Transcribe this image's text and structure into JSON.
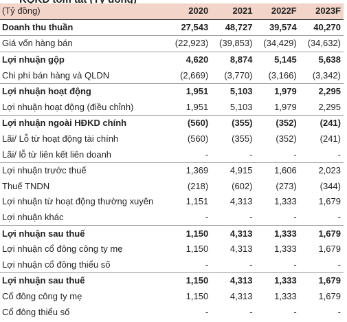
{
  "table": {
    "header": {
      "unit": "(Tỷ đồng)",
      "years": [
        "2020",
        "2021",
        "2022F",
        "2023F"
      ]
    },
    "rows": [
      {
        "label": "Doanh thu thuần",
        "values": [
          "27,543",
          "48,727",
          "39,574",
          "40,270"
        ],
        "bold": true,
        "sep": false
      },
      {
        "label": "Giá vốn hàng bán",
        "values": [
          "(22,923)",
          "(39,853)",
          "(34,429)",
          "(34,632)"
        ],
        "bold": false,
        "sep": true
      },
      {
        "label": "Lợi nhuận gộp",
        "values": [
          "4,620",
          "8,874",
          "5,145",
          "5,638"
        ],
        "bold": true,
        "sep": true
      },
      {
        "label": "Chi phí bán hàng và QLDN",
        "values": [
          "(2,669)",
          "(3,770)",
          "(3,166)",
          "(3,342)"
        ],
        "bold": false,
        "sep": false
      },
      {
        "label": "Lợi nhuận hoạt động",
        "values": [
          "1,951",
          "5,103",
          "1,979",
          "2,295"
        ],
        "bold": true,
        "sep": true
      },
      {
        "label": "Lợi nhuận hoạt động (điều chỉnh)",
        "values": [
          "1,951",
          "5,103",
          "1,979",
          "2,295"
        ],
        "bold": false,
        "sep": false
      },
      {
        "label": "Lợi nhuận ngoài HĐKD chính",
        "values": [
          "(560)",
          "(355)",
          "(352)",
          "(241)"
        ],
        "bold": true,
        "sep": true
      },
      {
        "label": "Lãi/ Lỗ từ hoạt động tài chính",
        "values": [
          "(560)",
          "(355)",
          "(352)",
          "(241)"
        ],
        "bold": false,
        "sep": false
      },
      {
        "label": "Lãi/ lỗ từ liên kết liên doanh",
        "values": [
          "-",
          "-",
          "-",
          "-"
        ],
        "bold": false,
        "sep": false
      },
      {
        "label": "Lợi nhuận trước thuế",
        "values": [
          "1,369",
          "4,915",
          "1,606",
          "2,023"
        ],
        "bold": false,
        "sep": true
      },
      {
        "label": "Thuế TNDN",
        "values": [
          "(218)",
          "(602)",
          "(273)",
          "(344)"
        ],
        "bold": false,
        "sep": false
      },
      {
        "label": "Lợi nhuận từ hoạt động thường xuyên",
        "values": [
          "1,151",
          "4,313",
          "1,333",
          "1,679"
        ],
        "bold": false,
        "sep": false
      },
      {
        "label": "Lợi nhuận khác",
        "values": [
          "-",
          "-",
          "-",
          "-"
        ],
        "bold": false,
        "sep": false
      },
      {
        "label": "Lợi nhuận sau thuế",
        "values": [
          "1,150",
          "4,313",
          "1,333",
          "1,679"
        ],
        "bold": true,
        "sep": true
      },
      {
        "label": "Lợi nhuận cổ đông công ty mẹ",
        "values": [
          "1,150",
          "4,313",
          "1,333",
          "1,679"
        ],
        "bold": false,
        "sep": false
      },
      {
        "label": "Lợi nhuận cổ đông thiểu số",
        "values": [
          "-",
          "-",
          "-",
          "-"
        ],
        "bold": false,
        "sep": false
      },
      {
        "label": "Lợi nhuận sau thuế",
        "values": [
          "1,150",
          "4,313",
          "1,333",
          "1,679"
        ],
        "bold": true,
        "sep": true
      },
      {
        "label": "Cổ đông công ty mẹ",
        "values": [
          "1,150",
          "4,313",
          "1,333",
          "1,679"
        ],
        "bold": false,
        "sep": false
      },
      {
        "label": "Cổ đông thiểu số",
        "values": [
          "-",
          "-",
          "-",
          "-"
        ],
        "bold": false,
        "sep": false
      }
    ]
  },
  "colors": {
    "header_bg": "#f2d4c8",
    "text": "#222222",
    "rule": "#999999"
  }
}
